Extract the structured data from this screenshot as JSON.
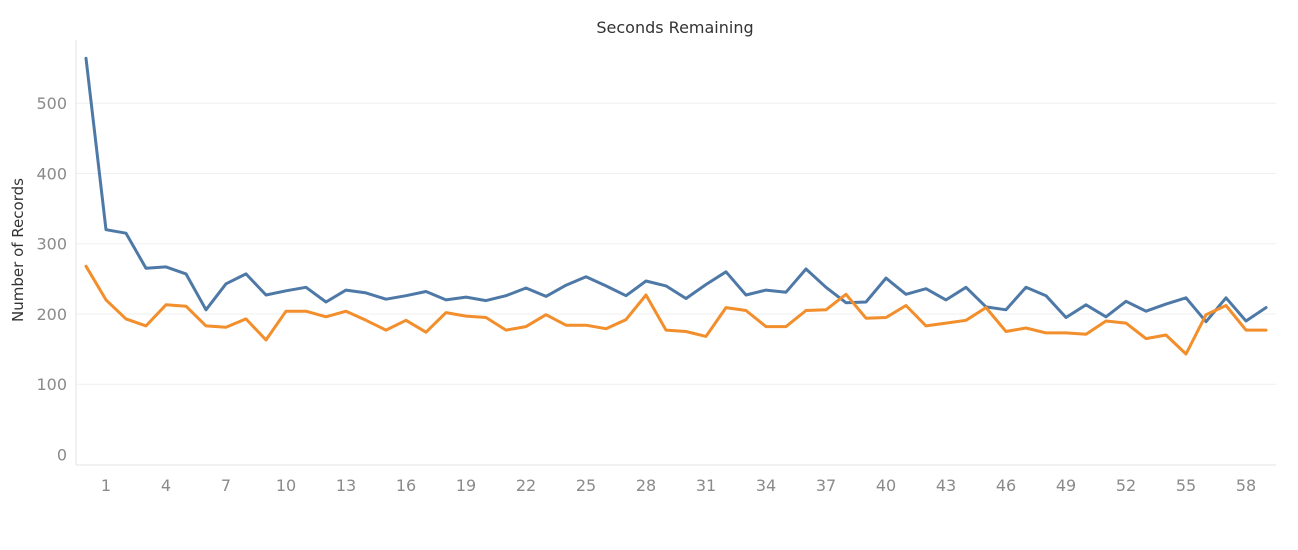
{
  "chart_data": {
    "type": "line",
    "title": "Seconds Remaining",
    "xlabel": "",
    "ylabel": "Number of Records",
    "ylim": [
      -15,
      590
    ],
    "yticks": [
      0,
      100,
      200,
      300,
      400,
      500
    ],
    "xticks": [
      1,
      4,
      7,
      10,
      13,
      16,
      19,
      22,
      25,
      28,
      31,
      34,
      37,
      40,
      43,
      46,
      49,
      52,
      55,
      58
    ],
    "grid": true,
    "legend": "none",
    "x": [
      0,
      1,
      2,
      3,
      4,
      5,
      6,
      7,
      8,
      9,
      10,
      11,
      12,
      13,
      14,
      15,
      16,
      17,
      18,
      19,
      20,
      21,
      22,
      23,
      24,
      25,
      26,
      27,
      28,
      29,
      30,
      31,
      32,
      33,
      34,
      35,
      36,
      37,
      38,
      39,
      40,
      41,
      42,
      43,
      44,
      45,
      46,
      47,
      48,
      49,
      50,
      51,
      52,
      53,
      54,
      55,
      56,
      57,
      58,
      59
    ],
    "series": [
      {
        "color": "#4e79a7",
        "values": [
          564,
          320,
          315,
          265,
          267,
          257,
          206,
          243,
          257,
          227,
          233,
          238,
          217,
          234,
          230,
          221,
          226,
          232,
          220,
          224,
          219,
          226,
          237,
          225,
          241,
          253,
          240,
          226,
          247,
          240,
          222,
          242,
          260,
          227,
          234,
          231,
          264,
          238,
          216,
          217,
          251,
          228,
          236,
          220,
          238,
          210,
          206,
          238,
          226,
          195,
          213,
          196,
          218,
          204,
          214,
          223,
          189,
          223,
          190,
          209
        ]
      },
      {
        "color": "#f28e2b",
        "values": [
          268,
          220,
          193,
          183,
          213,
          211,
          183,
          181,
          193,
          163,
          204,
          204,
          196,
          204,
          191,
          177,
          191,
          174,
          202,
          197,
          195,
          177,
          182,
          199,
          184,
          184,
          179,
          192,
          227,
          177,
          175,
          168,
          209,
          205,
          182,
          182,
          205,
          206,
          228,
          194,
          195,
          212,
          183,
          187,
          191,
          209,
          175,
          180,
          173,
          173,
          171,
          190,
          187,
          165,
          170,
          143,
          199,
          212,
          177,
          177
        ]
      }
    ]
  }
}
